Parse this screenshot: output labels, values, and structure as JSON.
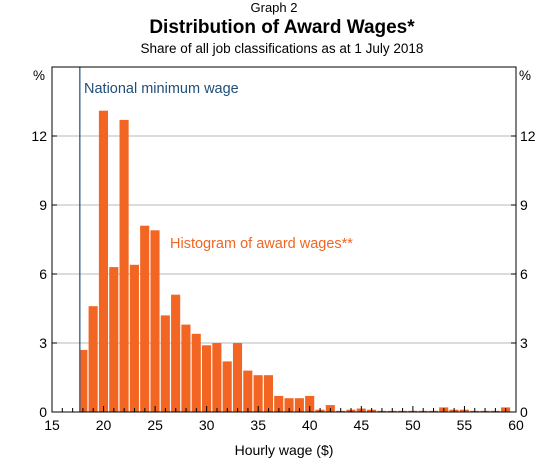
{
  "graph_label": "Graph 2",
  "chart_data": {
    "type": "bar",
    "title": "Distribution of Award Wages*",
    "subtitle": "Share of all job classifications as at 1 July 2018",
    "xlabel": "Hourly wage ($)",
    "ylabel": "",
    "y_unit_left": "%",
    "y_unit_right": "%",
    "xlim": [
      15,
      60
    ],
    "ylim": [
      0,
      15
    ],
    "x_ticks": [
      15,
      20,
      25,
      30,
      35,
      40,
      45,
      50,
      55,
      60
    ],
    "y_ticks": [
      0,
      3,
      6,
      9,
      12
    ],
    "grid": true,
    "bar_color": "#f26522",
    "reference_line": {
      "label": "National minimum wage",
      "x": 17.7,
      "color": "#1f4e79"
    },
    "annotations": [
      {
        "text": "Histogram of award wages**",
        "color": "#f26522"
      }
    ],
    "series": [
      {
        "x_start": [
          17.7,
          18.5,
          19.5,
          20.5,
          21.5,
          22.5,
          23.5,
          24.5,
          25.5,
          26.5,
          27.5,
          28.5,
          29.5,
          30.5,
          31.5,
          32.5,
          33.5,
          34.5,
          35.5,
          36.5,
          37.5,
          38.5,
          39.5,
          40.5,
          41.5,
          42.5,
          43.5,
          44.5,
          45.5,
          46.5,
          47.5,
          48.5,
          49.5,
          50.5,
          51.5,
          52.5,
          53.5,
          54.5,
          55.5,
          56.5,
          57.5,
          58.5
        ],
        "x_end": [
          18.5,
          19.5,
          20.5,
          21.5,
          22.5,
          23.5,
          24.5,
          25.5,
          26.5,
          27.5,
          28.5,
          29.5,
          30.5,
          31.5,
          32.5,
          33.5,
          34.5,
          35.5,
          36.5,
          37.5,
          38.5,
          39.5,
          40.5,
          41.5,
          42.5,
          43.5,
          44.5,
          45.5,
          46.5,
          47.5,
          48.5,
          49.5,
          50.5,
          51.5,
          52.5,
          53.5,
          54.5,
          55.5,
          56.5,
          57.5,
          58.5,
          59.5
        ],
        "values": [
          2.7,
          4.6,
          13.1,
          6.3,
          12.7,
          6.4,
          8.1,
          7.9,
          4.2,
          5.1,
          3.8,
          3.4,
          2.9,
          3.0,
          2.2,
          3.0,
          1.8,
          1.6,
          1.6,
          0.7,
          0.6,
          0.6,
          0.7,
          0.1,
          0.3,
          0.05,
          0.1,
          0.15,
          0.1,
          0.05,
          0.05,
          0.05,
          0.05,
          0.05,
          0.05,
          0.2,
          0.1,
          0.1,
          0.05,
          0.05,
          0.05,
          0.2
        ]
      }
    ]
  }
}
